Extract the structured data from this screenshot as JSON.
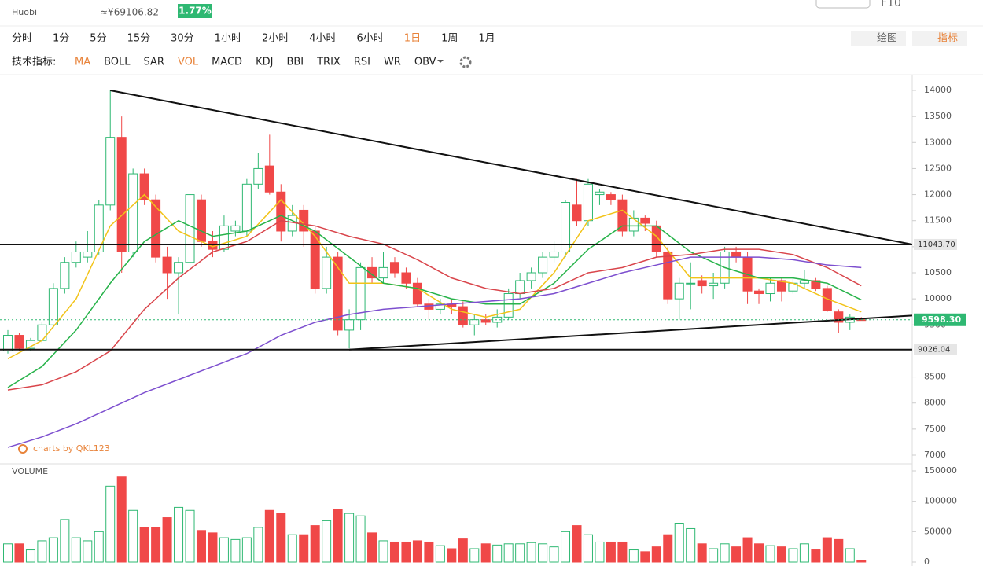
{
  "header": {
    "exchange": "Huobi",
    "price_cny": "≈¥69106.82",
    "change": "1.77%",
    "top_right": "F10"
  },
  "toolbar": {
    "periods": [
      "分时",
      "1分",
      "5分",
      "15分",
      "30分",
      "1小时",
      "2小时",
      "4小时",
      "6小时",
      "1日",
      "1周",
      "1月"
    ],
    "active_period": 9,
    "draw": "绘图",
    "indicator": "指标"
  },
  "indicators": {
    "label": "技术指标:",
    "items": [
      "MA",
      "BOLL",
      "SAR",
      "VOL",
      "MACD",
      "KDJ",
      "BBI",
      "TRIX",
      "RSI",
      "WR",
      "OBV"
    ],
    "active": [
      0,
      3
    ]
  },
  "chart_data": {
    "type": "candlestick",
    "watermark": "charts by QKL123",
    "volume_label": "VOLUME",
    "ylim": [
      7000,
      14000
    ],
    "yticks": [
      14000,
      13500,
      13000,
      12500,
      12000,
      11500,
      11000,
      10500,
      10000,
      9500,
      9000,
      8500,
      8000,
      7500,
      7000
    ],
    "vlim": [
      0,
      150000
    ],
    "vticks": [
      0,
      50000,
      100000,
      150000
    ],
    "ohlc": [
      [
        9000,
        9400,
        8950,
        9300
      ],
      [
        9300,
        9350,
        9000,
        9050
      ],
      [
        9050,
        9250,
        9000,
        9200
      ],
      [
        9200,
        9550,
        9150,
        9500
      ],
      [
        9500,
        10300,
        9450,
        10200
      ],
      [
        10200,
        10800,
        10100,
        10700
      ],
      [
        10700,
        11100,
        10600,
        10900
      ],
      [
        10800,
        11300,
        10700,
        10900
      ],
      [
        10900,
        11900,
        10850,
        11800
      ],
      [
        11800,
        14000,
        11700,
        13100
      ],
      [
        13100,
        13500,
        10500,
        10900
      ],
      [
        10900,
        12500,
        10800,
        12400
      ],
      [
        12400,
        12500,
        11800,
        11900
      ],
      [
        11900,
        12000,
        10700,
        10800
      ],
      [
        10800,
        11000,
        10000,
        10500
      ],
      [
        10500,
        10800,
        9700,
        10700
      ],
      [
        10700,
        12000,
        10600,
        12000
      ],
      [
        11900,
        12000,
        11000,
        11100
      ],
      [
        11100,
        11300,
        10800,
        10950
      ],
      [
        10950,
        11600,
        10900,
        11400
      ],
      [
        11300,
        11500,
        11200,
        11400
      ],
      [
        11300,
        12300,
        11200,
        12200
      ],
      [
        12200,
        12800,
        12100,
        12500
      ],
      [
        12550,
        13150,
        12000,
        12050
      ],
      [
        12050,
        12200,
        11100,
        11300
      ],
      [
        11300,
        11800,
        11200,
        11600
      ],
      [
        11700,
        11800,
        11000,
        11300
      ],
      [
        11300,
        11400,
        10100,
        10200
      ],
      [
        10200,
        11000,
        10100,
        10800
      ],
      [
        10800,
        10900,
        9300,
        9400
      ],
      [
        9400,
        9800,
        9050,
        9600
      ],
      [
        9600,
        10700,
        9400,
        10600
      ],
      [
        10600,
        10800,
        10300,
        10400
      ],
      [
        10400,
        10900,
        10300,
        10600
      ],
      [
        10700,
        10800,
        10400,
        10500
      ],
      [
        10500,
        10600,
        10200,
        10300
      ],
      [
        10300,
        10400,
        9850,
        9900
      ],
      [
        9900,
        10000,
        9600,
        9800
      ],
      [
        9800,
        10000,
        9700,
        9900
      ],
      [
        9900,
        10000,
        9700,
        9850
      ],
      [
        9850,
        9950,
        9450,
        9500
      ],
      [
        9500,
        9700,
        9300,
        9600
      ],
      [
        9600,
        9700,
        9500,
        9550
      ],
      [
        9550,
        9800,
        9450,
        9650
      ],
      [
        9650,
        10200,
        9600,
        10100
      ],
      [
        10100,
        10500,
        10000,
        10350
      ],
      [
        10350,
        10600,
        10200,
        10500
      ],
      [
        10500,
        10900,
        10400,
        10800
      ],
      [
        10800,
        11100,
        10700,
        10900
      ],
      [
        10900,
        11900,
        10800,
        11850
      ],
      [
        11800,
        12300,
        11400,
        11500
      ],
      [
        11500,
        12300,
        11400,
        12200
      ],
      [
        12000,
        12100,
        11800,
        12050
      ],
      [
        12000,
        12050,
        11800,
        11900
      ],
      [
        11900,
        12000,
        11200,
        11300
      ],
      [
        11300,
        11700,
        11200,
        11550
      ],
      [
        11550,
        11600,
        11300,
        11450
      ],
      [
        11400,
        11500,
        10800,
        10900
      ],
      [
        10900,
        11000,
        9900,
        10000
      ],
      [
        10000,
        10400,
        9600,
        10300
      ],
      [
        10300,
        10700,
        9800,
        10300
      ],
      [
        10350,
        10450,
        10100,
        10250
      ],
      [
        10250,
        10500,
        10000,
        10300
      ],
      [
        10300,
        11000,
        10200,
        10900
      ],
      [
        10900,
        11000,
        10700,
        10800
      ],
      [
        10800,
        10900,
        9900,
        10150
      ],
      [
        10150,
        10200,
        9900,
        10100
      ],
      [
        10100,
        10400,
        9950,
        10300
      ],
      [
        10350,
        10400,
        9950,
        10150
      ],
      [
        10150,
        10400,
        10100,
        10300
      ],
      [
        10300,
        10550,
        10200,
        10350
      ],
      [
        10350,
        10400,
        10150,
        10200
      ],
      [
        10200,
        10250,
        9750,
        9780
      ],
      [
        9750,
        9800,
        9350,
        9550
      ],
      [
        9550,
        9700,
        9400,
        9650
      ],
      [
        9600,
        9650,
        9580,
        9598
      ]
    ],
    "volume": [
      30000,
      30000,
      20000,
      35000,
      40000,
      70000,
      40000,
      35000,
      50000,
      125000,
      140000,
      85000,
      57000,
      57000,
      73000,
      90000,
      85000,
      52000,
      48000,
      40000,
      37000,
      40000,
      57000,
      85000,
      80000,
      45000,
      45000,
      60000,
      68000,
      86000,
      80000,
      76000,
      48000,
      35000,
      33000,
      33000,
      35000,
      33000,
      27000,
      22000,
      38000,
      22000,
      30000,
      28000,
      30000,
      30000,
      32000,
      30000,
      25000,
      50000,
      60000,
      45000,
      33000,
      33000,
      33000,
      20000,
      17000,
      25000,
      45000,
      64000,
      55000,
      30000,
      22000,
      30000,
      25000,
      40000,
      30000,
      27000,
      25000,
      22000,
      30000,
      20000,
      40000,
      37000,
      22000,
      2000
    ],
    "up_color": "#2eb872",
    "down_color": "#f04848",
    "ma_x": [
      0,
      3,
      6,
      9,
      12,
      15,
      18,
      21,
      24,
      27,
      30,
      33,
      36,
      39,
      42,
      45,
      48,
      51,
      54,
      57,
      60,
      63,
      66,
      69,
      72,
      75
    ],
    "ma_lines": [
      {
        "color": "#f2c318",
        "values": [
          8850,
          9200,
          10000,
          11400,
          12000,
          11300,
          11000,
          11200,
          11900,
          11200,
          10300,
          10300,
          10200,
          9800,
          9650,
          9800,
          10500,
          11500,
          11700,
          11200,
          10400,
          10400,
          10400,
          10300,
          10000,
          9750
        ]
      },
      {
        "color": "#27b34a",
        "values": [
          8300,
          8700,
          9400,
          10300,
          11100,
          11500,
          11200,
          11300,
          11600,
          11300,
          10800,
          10300,
          10200,
          10000,
          9900,
          9900,
          10300,
          10950,
          11400,
          11400,
          10900,
          10600,
          10400,
          10400,
          10300,
          9980
        ]
      },
      {
        "color": "#d9454b",
        "values": [
          8250,
          8350,
          8600,
          9000,
          9800,
          10400,
          10900,
          11100,
          11500,
          11400,
          11200,
          11050,
          10750,
          10400,
          10200,
          10100,
          10200,
          10500,
          10600,
          10800,
          10850,
          10950,
          10950,
          10850,
          10600,
          10250
        ]
      },
      {
        "color": "#7d4fcf",
        "values": [
          7150,
          7350,
          7600,
          7900,
          8200,
          8450,
          8700,
          8950,
          9300,
          9550,
          9700,
          9800,
          9850,
          9900,
          9950,
          10000,
          10100,
          10300,
          10500,
          10650,
          10800,
          10800,
          10800,
          10750,
          10650,
          10600
        ]
      }
    ],
    "levels": [
      {
        "value": 11043.7,
        "label": "11043.70"
      },
      {
        "value": 9026.04,
        "label": "9026.04"
      }
    ],
    "last_price": {
      "value": 9598.3,
      "label": "9598.30"
    },
    "trendlines": [
      {
        "x": [
          9,
          79.5
        ],
        "y": [
          14000,
          11043.7
        ]
      },
      {
        "x": [
          30,
          79.5
        ],
        "y": [
          9026.04,
          9680
        ]
      }
    ]
  }
}
